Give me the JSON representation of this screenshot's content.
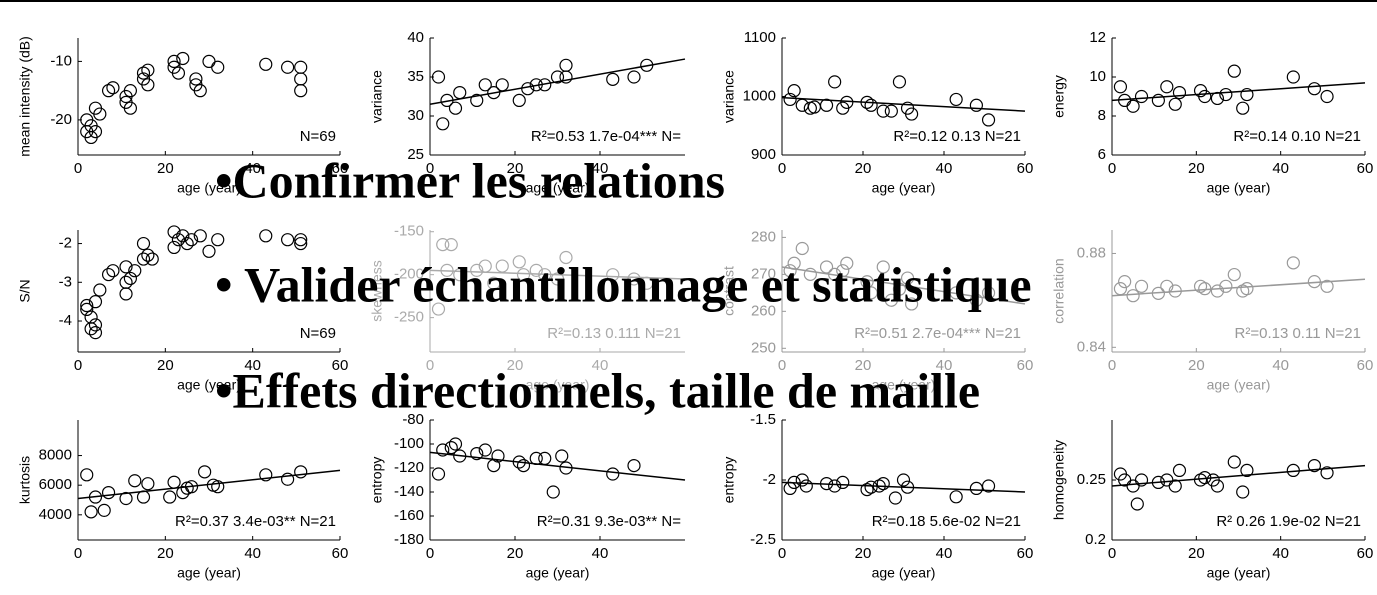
{
  "chart_data": [
    {
      "type": "scatter",
      "ylabel": "mean intensity (dB)",
      "xlabel": "age (year)",
      "annotation": "N=69",
      "color": "#000000",
      "xlim": [
        0,
        60
      ],
      "xticks": [
        0,
        20,
        40,
        60
      ],
      "ylim": [
        -26,
        -6
      ],
      "yticks": [
        -20,
        -10
      ],
      "x": [
        2,
        2,
        3,
        3,
        4,
        4,
        5,
        7,
        8,
        11,
        11,
        12,
        12,
        15,
        15,
        16,
        16,
        22,
        22,
        23,
        24,
        27,
        27,
        28,
        30,
        32,
        43,
        48,
        51,
        51,
        51
      ],
      "y": [
        -20,
        -22,
        -21,
        -23,
        -22,
        -18,
        -19,
        -15,
        -14.5,
        -16,
        -17,
        -18,
        -15,
        -12,
        -13,
        -14,
        -11.5,
        -10,
        -11,
        -12,
        -9.5,
        -13,
        -14,
        -15,
        -10,
        -11,
        -10.5,
        -11,
        -11,
        -13,
        -15
      ]
    },
    {
      "type": "scatter",
      "ylabel": "variance",
      "xlabel": "age (year)",
      "annotation": "R²=0.53 1.7e-04*** N=",
      "color": "#000000",
      "xlim": [
        0,
        60
      ],
      "xticks": [
        0,
        20,
        40
      ],
      "ylim": [
        25,
        40
      ],
      "yticks": [
        25,
        30,
        35,
        40
      ],
      "trend": [
        31.5,
        37.3
      ],
      "x": [
        2,
        3,
        4,
        6,
        7,
        11,
        13,
        15,
        17,
        21,
        23,
        25,
        27,
        30,
        32,
        32,
        43,
        48,
        51
      ],
      "y": [
        35,
        29,
        32,
        31,
        33,
        32,
        34,
        33,
        34,
        32,
        33.5,
        34,
        34,
        35,
        36.5,
        35,
        34.7,
        35,
        36.5
      ]
    },
    {
      "type": "scatter",
      "ylabel": "variance",
      "xlabel": "age (year)",
      "annotation": "R²=0.12  0.13  N=21",
      "color": "#000000",
      "xlim": [
        0,
        60
      ],
      "xticks": [
        0,
        20,
        40,
        60
      ],
      "ylim": [
        900,
        1100
      ],
      "yticks": [
        900,
        1000,
        1100
      ],
      "trend": [
        998,
        975
      ],
      "x": [
        2,
        3,
        5,
        7,
        8,
        11,
        13,
        15,
        16,
        21,
        22,
        25,
        27,
        29,
        31,
        32,
        43,
        48,
        51
      ],
      "y": [
        995,
        1010,
        985,
        980,
        982,
        985,
        1025,
        980,
        990,
        990,
        985,
        975,
        975,
        1025,
        980,
        970,
        995,
        985,
        960
      ]
    },
    {
      "type": "scatter",
      "ylabel": "energy",
      "xlabel": "age (year)",
      "annotation": "R²=0.14  0.10  N=21",
      "color": "#000000",
      "xlim": [
        0,
        60
      ],
      "xticks": [
        0,
        20,
        40,
        60
      ],
      "ylim": [
        6,
        12
      ],
      "yticks": [
        6,
        8,
        10,
        12
      ],
      "trend": [
        8.8,
        9.7
      ],
      "x": [
        2,
        3,
        5,
        7,
        11,
        13,
        15,
        16,
        21,
        22,
        25,
        27,
        29,
        31,
        32,
        43,
        48,
        51
      ],
      "y": [
        9.5,
        8.8,
        8.5,
        9,
        8.8,
        9.5,
        8.6,
        9.2,
        9.3,
        9,
        8.9,
        9.1,
        10.3,
        8.4,
        9.1,
        10,
        9.4,
        9
      ]
    },
    {
      "type": "scatter",
      "ylabel": "S/N",
      "xlabel": "age (year)",
      "annotation": "N=69",
      "color": "#000000",
      "xlim": [
        0,
        60
      ],
      "xticks": [
        0,
        20,
        40,
        60
      ],
      "ylim": [
        -4.8,
        -1.65
      ],
      "yticks": [
        -4,
        -3,
        -2
      ],
      "x": [
        2,
        2,
        3,
        3,
        4,
        4,
        4,
        5,
        7,
        8,
        11,
        11,
        11,
        12,
        13,
        15,
        15,
        16,
        17,
        22,
        22,
        23,
        24,
        25,
        26,
        28,
        30,
        32,
        43,
        48,
        51,
        51
      ],
      "y": [
        -3.7,
        -3.6,
        -3.9,
        -4.2,
        -4.3,
        -4.1,
        -3.5,
        -3.2,
        -2.8,
        -2.7,
        -2.6,
        -3,
        -3.3,
        -2.9,
        -2.7,
        -2.4,
        -2,
        -2.3,
        -2.4,
        -1.7,
        -2.1,
        -1.9,
        -1.8,
        -2,
        -1.9,
        -1.8,
        -2.2,
        -1.9,
        -1.8,
        -1.9,
        -1.9,
        -2
      ]
    },
    {
      "type": "scatter",
      "ylabel": "skewness",
      "xlabel": "age (year)",
      "annotation": "R²=0.13  0.111  N=21",
      "color": "#aaaaaa",
      "xlim": [
        0,
        60
      ],
      "xticks": [
        0,
        20,
        40
      ],
      "ylim": [
        -290,
        -148
      ],
      "yticks": [
        -250,
        -200,
        -150
      ],
      "trend": [
        -195,
        -205
      ],
      "x": [
        2,
        3,
        4,
        5,
        7,
        11,
        13,
        15,
        17,
        21,
        22,
        25,
        27,
        30,
        32,
        43,
        48,
        51
      ],
      "y": [
        -240,
        -165,
        -195,
        -165,
        -200,
        -195,
        -190,
        -210,
        -190,
        -185,
        -200,
        -195,
        -200,
        -205,
        -180,
        -200,
        -205,
        -210
      ]
    },
    {
      "type": "scatter",
      "ylabel": "contrast",
      "xlabel": "age (year)",
      "annotation": "R²=0.51  2.7e-04*** N=21",
      "color": "#999999",
      "xlim": [
        0,
        60
      ],
      "xticks": [
        0,
        20,
        40,
        60
      ],
      "ylim": [
        249,
        282
      ],
      "yticks": [
        250,
        260,
        270,
        280
      ],
      "trend": [
        272,
        262
      ],
      "x": [
        2,
        3,
        5,
        7,
        11,
        13,
        15,
        16,
        21,
        22,
        25,
        27,
        29,
        31,
        32,
        43,
        48,
        51
      ],
      "y": [
        271,
        273,
        277,
        270,
        272,
        270,
        271,
        273,
        268,
        265,
        272,
        263,
        266,
        269,
        262,
        265,
        263,
        265
      ]
    },
    {
      "type": "scatter",
      "ylabel": "correlation",
      "xlabel": "age (year)",
      "annotation": "R²=0.13  0.11  N=21",
      "color": "#999999",
      "xlim": [
        0,
        60
      ],
      "xticks": [
        0,
        20,
        40,
        60
      ],
      "ylim": [
        0.838,
        0.89
      ],
      "yticks": [
        0.84,
        0.88
      ],
      "trend": [
        0.862,
        0.869
      ],
      "x": [
        2,
        3,
        5,
        7,
        11,
        13,
        15,
        21,
        22,
        25,
        27,
        29,
        31,
        32,
        43,
        48,
        51
      ],
      "y": [
        0.865,
        0.868,
        0.862,
        0.866,
        0.863,
        0.866,
        0.864,
        0.866,
        0.865,
        0.864,
        0.866,
        0.871,
        0.864,
        0.865,
        0.876,
        0.868,
        0.866
      ]
    },
    {
      "type": "scatter",
      "ylabel": "kurtosis",
      "xlabel": "age (year)",
      "annotation": "R²=0.37  3.4e-03** N=21",
      "color": "#000000",
      "xlim": [
        0,
        60
      ],
      "xticks": [
        0,
        20,
        40,
        60
      ],
      "ylim": [
        2300,
        10400
      ],
      "yticks": [
        4000,
        6000,
        8000
      ],
      "trend": [
        5100,
        7000
      ],
      "x": [
        2,
        3,
        4,
        6,
        7,
        11,
        13,
        15,
        16,
        21,
        22,
        24,
        25,
        26,
        29,
        31,
        32,
        43,
        48,
        51
      ],
      "y": [
        6700,
        4200,
        5200,
        4300,
        5500,
        5100,
        6300,
        5200,
        6100,
        5200,
        6200,
        5500,
        5800,
        5900,
        6900,
        6000,
        5900,
        6700,
        6400,
        6900
      ]
    },
    {
      "type": "scatter",
      "ylabel": "entropy",
      "xlabel": "age (year)",
      "annotation": "R²=0.31  9.3e-03** N=",
      "color": "#000000",
      "xlim": [
        0,
        60
      ],
      "xticks": [
        0,
        20,
        40
      ],
      "ylim": [
        -180,
        -80
      ],
      "yticks": [
        -180,
        -160,
        -140,
        -120,
        -100,
        -80
      ],
      "trend": [
        -107,
        -130
      ],
      "x": [
        2,
        3,
        5,
        6,
        7,
        11,
        13,
        15,
        16,
        21,
        22,
        25,
        27,
        29,
        31,
        32,
        43,
        48
      ],
      "y": [
        -125,
        -105,
        -103,
        -100,
        -110,
        -108,
        -105,
        -118,
        -110,
        -115,
        -118,
        -112,
        -112,
        -140,
        -110,
        -120,
        -125,
        -118
      ]
    },
    {
      "type": "scatter",
      "ylabel": "entropy",
      "xlabel": "age (year)",
      "annotation": "R²=0.18  5.6e-02  N=21",
      "color": "#000000",
      "xlim": [
        0,
        60
      ],
      "xticks": [
        0,
        20,
        40,
        60
      ],
      "ylim": [
        -2.5,
        -1.5
      ],
      "yticks": [
        -2.5,
        -2,
        -1.5
      ],
      "trend": [
        -2.02,
        -2.1
      ],
      "x": [
        2,
        3,
        5,
        6,
        11,
        13,
        15,
        21,
        22,
        24,
        25,
        28,
        30,
        31,
        43,
        48,
        51
      ],
      "y": [
        -2.07,
        -2.02,
        -2,
        -2.05,
        -2.03,
        -2.05,
        -2.02,
        -2.08,
        -2.06,
        -2.05,
        -2.03,
        -2.15,
        -2,
        -2.06,
        -2.14,
        -2.07,
        -2.05
      ]
    },
    {
      "type": "scatter",
      "ylabel": "homogeneity",
      "xlabel": "age (year)",
      "annotation": "R² 0.26  1.9e-02  N=21",
      "color": "#000000",
      "xlim": [
        0,
        60
      ],
      "xticks": [
        0,
        20,
        40,
        60
      ],
      "ylim": [
        0.2,
        0.3
      ],
      "yticks": [
        0.2,
        0.25
      ],
      "trend": [
        0.245,
        0.262
      ],
      "x": [
        2,
        3,
        5,
        6,
        7,
        11,
        13,
        15,
        16,
        21,
        22,
        24,
        25,
        29,
        31,
        32,
        43,
        48,
        51
      ],
      "y": [
        0.255,
        0.25,
        0.245,
        0.23,
        0.25,
        0.248,
        0.25,
        0.245,
        0.258,
        0.25,
        0.252,
        0.25,
        0.245,
        0.265,
        0.24,
        0.258,
        0.258,
        0.262,
        0.256
      ]
    }
  ],
  "bullets": [
    "•Confirmer les relations",
    "• Valider échantillonnage et statistique",
    "•Effets directionnels, taille de maille"
  ]
}
